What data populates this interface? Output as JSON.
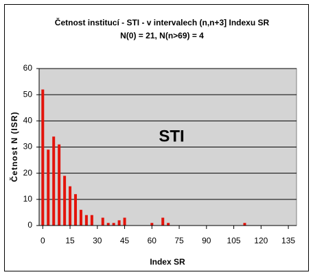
{
  "chart_data": {
    "type": "bar",
    "title": "Četnost institucí - STI - v intervalech (n,n+3] Indexu SR",
    "subtitle": "N(0) = 21,  N(n>69) = 4",
    "x_label": "Index SR",
    "y_label": "Četnost N (ISR)",
    "annotation": "STI",
    "x": [
      0,
      3,
      6,
      9,
      12,
      15,
      18,
      21,
      24,
      27,
      33,
      36,
      39,
      42,
      45,
      60,
      66,
      69,
      111
    ],
    "values": [
      52,
      29,
      34,
      31,
      19,
      15,
      12,
      6,
      4,
      4,
      3,
      1,
      1,
      2,
      3,
      1,
      3,
      1,
      1
    ],
    "color": "#e3140c",
    "background": "#d4d4d4",
    "xlim": [
      -2,
      139.5
    ],
    "xticks": [
      0,
      15,
      30,
      45,
      60,
      75,
      90,
      105,
      120,
      135
    ],
    "ylim": [
      0,
      60
    ],
    "yticks": [
      0,
      10,
      20,
      30,
      40,
      50,
      60
    ],
    "grid": true
  }
}
